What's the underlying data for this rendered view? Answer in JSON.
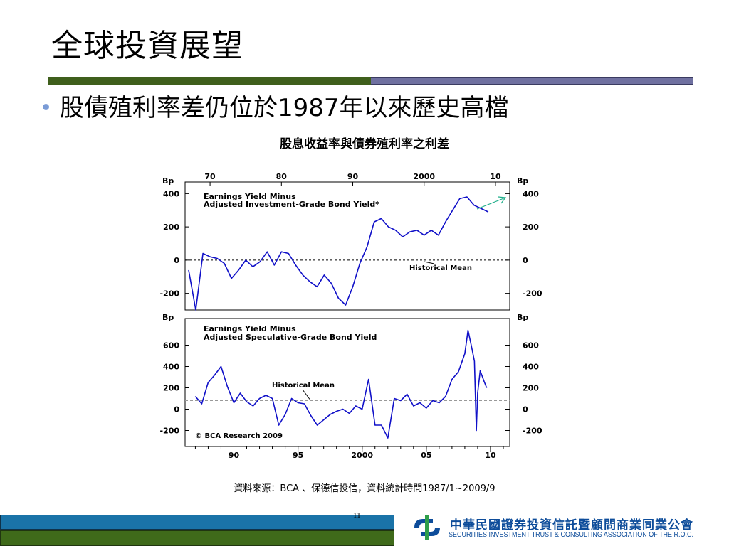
{
  "slide": {
    "title": "全球投資展望",
    "bullet": "股債殖利率差仍位於1987年以來歷史高檔",
    "subtitle": "股息收益率與債券殖利率之利差",
    "source": "資料來源：BCA 、保德信投信，資料統計時間1987/1~2009/9",
    "page_number": "11",
    "association_cn": "中華民國證券投資信託暨顧問商業同業公會",
    "association_en": "SECURITIES INVESTMENT TRUST & CONSULTING ASSOCIATION OF THE R.O.C."
  },
  "chart_data": [
    {
      "type": "line",
      "title": "Earnings Yield Minus Adjusted Investment-Grade Bond Yield*",
      "unit_left": "Bp",
      "unit_right": "Bp",
      "x_ticks_top": [
        "70",
        "80",
        "90",
        "2000",
        "10"
      ],
      "y_ticks": [
        "400",
        "200",
        "0",
        "-200"
      ],
      "ylim": [
        -300,
        470
      ],
      "annotation": "Historical Mean",
      "mean": 0,
      "x": [
        1967,
        1968,
        1969,
        1970,
        1971,
        1972,
        1973,
        1974,
        1975,
        1976,
        1977,
        1978,
        1979,
        1980,
        1981,
        1982,
        1983,
        1984,
        1985,
        1986,
        1987,
        1988,
        1989,
        1990,
        1991,
        1992,
        1993,
        1994,
        1995,
        1996,
        1997,
        1998,
        1999,
        2000,
        2001,
        2002,
        2003,
        2004,
        2005,
        2006,
        2007,
        2008,
        2009
      ],
      "values": [
        -60,
        -300,
        40,
        20,
        10,
        -20,
        -110,
        -60,
        0,
        -40,
        -10,
        50,
        -30,
        50,
        40,
        -30,
        -90,
        -130,
        -160,
        -90,
        -140,
        -230,
        -270,
        -160,
        -20,
        80,
        230,
        250,
        200,
        180,
        140,
        170,
        180,
        150,
        180,
        150,
        230,
        300,
        370,
        380,
        330,
        310,
        290
      ],
      "color": "#1010c8"
    },
    {
      "type": "line",
      "title": "Earnings Yield Minus Adjusted Speculative-Grade Bond Yield",
      "unit_left": "Bp",
      "unit_right": "Bp",
      "x_ticks_bottom": [
        "90",
        "95",
        "2000",
        "05",
        "10"
      ],
      "y_ticks": [
        "600",
        "400",
        "200",
        "0",
        "-200"
      ],
      "ylim": [
        -350,
        850
      ],
      "annotation": "Historical Mean",
      "mean": 80,
      "copyright": "© BCA Research 2009",
      "x": [
        1987.0,
        1987.5,
        1988.0,
        1988.5,
        1989.0,
        1989.5,
        1990.0,
        1990.5,
        1991.0,
        1991.5,
        1992.0,
        1992.5,
        1993.0,
        1993.5,
        1994.0,
        1994.5,
        1995.0,
        1995.5,
        1996.0,
        1996.5,
        1997.0,
        1997.5,
        1998.0,
        1998.5,
        1999.0,
        1999.5,
        2000.0,
        2000.5,
        2001.0,
        2001.5,
        2002.0,
        2002.5,
        2003.0,
        2003.5,
        2004.0,
        2004.5,
        2005.0,
        2005.5,
        2006.0,
        2006.5,
        2007.0,
        2007.5,
        2008.0,
        2008.25,
        2008.5,
        2008.75,
        2008.9,
        2009.0,
        2009.2,
        2009.5,
        2009.7
      ],
      "values": [
        120,
        50,
        250,
        320,
        400,
        210,
        60,
        150,
        70,
        30,
        100,
        130,
        100,
        -150,
        -50,
        100,
        60,
        50,
        -60,
        -150,
        -100,
        -50,
        -20,
        0,
        -40,
        30,
        0,
        280,
        -150,
        -150,
        -270,
        100,
        80,
        140,
        30,
        60,
        10,
        80,
        60,
        120,
        280,
        350,
        520,
        740,
        600,
        450,
        -200,
        150,
        360,
        260,
        200
      ],
      "color": "#1010c8"
    }
  ]
}
